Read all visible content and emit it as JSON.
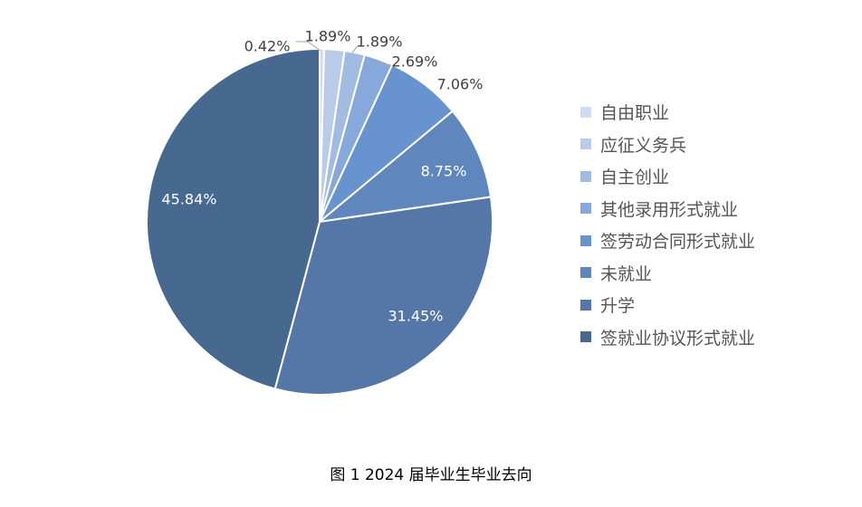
{
  "caption": "图 1   2024 届毕业生毕业去向",
  "chart_data": {
    "type": "pie",
    "title": "",
    "legend_position": "right",
    "start_angle": "top",
    "direction": "clockwise",
    "slices": [
      {
        "name": "自由职业",
        "value": 0.42,
        "label": "0.42%",
        "color": "#d0dcee"
      },
      {
        "name": "应征义务兵",
        "value": 1.89,
        "label": "1.89%",
        "color": "#b9cbe7"
      },
      {
        "name": "自主创业",
        "value": 1.89,
        "label": "1.89%",
        "color": "#a2bbe1"
      },
      {
        "name": "其他录用形式就业",
        "value": 2.69,
        "label": "2.69%",
        "color": "#86a8da"
      },
      {
        "name": "签劳动合同形式就业",
        "value": 7.06,
        "label": "7.06%",
        "color": "#6793cf"
      },
      {
        "name": "未就业",
        "value": 8.75,
        "label": "8.75%",
        "color": "#5f87bd"
      },
      {
        "name": "升学",
        "value": 31.45,
        "label": "31.45%",
        "color": "#5477a7"
      },
      {
        "name": "签就业协议形式就业",
        "value": 45.84,
        "label": "45.84%",
        "color": "#476990"
      }
    ]
  }
}
